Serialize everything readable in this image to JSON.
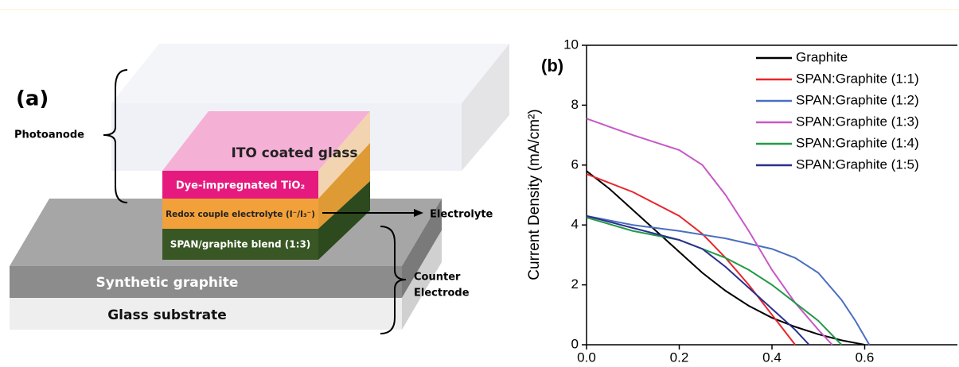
{
  "diagram": {
    "panel_label": "(a)",
    "photoanode": "Photoanode",
    "ito": "ITO coated glass",
    "dye": "Dye-impregnated TiO₂",
    "redox": "Redox couple electrolyte (I⁻/I₃⁻)",
    "electrolyte": "Electrolyte",
    "span": "SPAN/graphite blend (1:3)",
    "graphite": "Synthetic graphite",
    "glass": "Glass substrate",
    "counter": [
      "Counter",
      "Electrode"
    ]
  },
  "chart_data": {
    "type": "line",
    "panel_label": "(b)",
    "ylabel": "Current Density (mA/cm²)",
    "xlim": [
      0,
      0.8
    ],
    "xticks": [
      {
        "value": 0,
        "label": "0.0"
      },
      0.2,
      0.4,
      0.6
    ],
    "ylim": [
      0,
      10
    ],
    "yticks": [
      0,
      2,
      4,
      6,
      8,
      10
    ],
    "series": [
      {
        "name": "Graphite",
        "color": "#000000",
        "x": [
          0,
          0.05,
          0.1,
          0.15,
          0.2,
          0.25,
          0.3,
          0.35,
          0.4,
          0.45,
          0.5,
          0.55,
          0.6
        ],
        "values": [
          5.8,
          5.2,
          4.5,
          3.8,
          3.1,
          2.4,
          1.8,
          1.3,
          0.9,
          0.6,
          0.35,
          0.15,
          0
        ]
      },
      {
        "name": "SPAN:Graphite (1:1)",
        "color": "#e8262a",
        "x": [
          0,
          0.1,
          0.2,
          0.25,
          0.3,
          0.35,
          0.4,
          0.43,
          0.45
        ],
        "values": [
          5.7,
          5.1,
          4.3,
          3.7,
          2.9,
          2.0,
          1.0,
          0.4,
          0
        ]
      },
      {
        "name": "SPAN:Graphite (1:2)",
        "color": "#4a6fc0",
        "x": [
          0,
          0.1,
          0.2,
          0.3,
          0.4,
          0.45,
          0.5,
          0.55,
          0.58,
          0.61
        ],
        "values": [
          4.3,
          4.0,
          3.8,
          3.55,
          3.2,
          2.9,
          2.4,
          1.5,
          0.8,
          0
        ]
      },
      {
        "name": "SPAN:Graphite (1:3)",
        "color": "#c659c6",
        "x": [
          0,
          0.1,
          0.2,
          0.25,
          0.3,
          0.35,
          0.4,
          0.45,
          0.5,
          0.53
        ],
        "values": [
          7.55,
          7.0,
          6.5,
          6.0,
          5.0,
          3.8,
          2.5,
          1.4,
          0.5,
          0
        ]
      },
      {
        "name": "SPAN:Graphite (1:4)",
        "color": "#239a48",
        "x": [
          0,
          0.1,
          0.2,
          0.3,
          0.35,
          0.4,
          0.45,
          0.5,
          0.55
        ],
        "values": [
          4.25,
          3.8,
          3.5,
          2.9,
          2.5,
          2.0,
          1.4,
          0.8,
          0
        ]
      },
      {
        "name": "SPAN:Graphite (1:5)",
        "color": "#2b2f8c",
        "x": [
          0,
          0.1,
          0.2,
          0.25,
          0.3,
          0.35,
          0.4,
          0.45,
          0.48
        ],
        "values": [
          4.3,
          3.9,
          3.5,
          3.2,
          2.6,
          1.9,
          1.2,
          0.5,
          0
        ]
      }
    ]
  }
}
